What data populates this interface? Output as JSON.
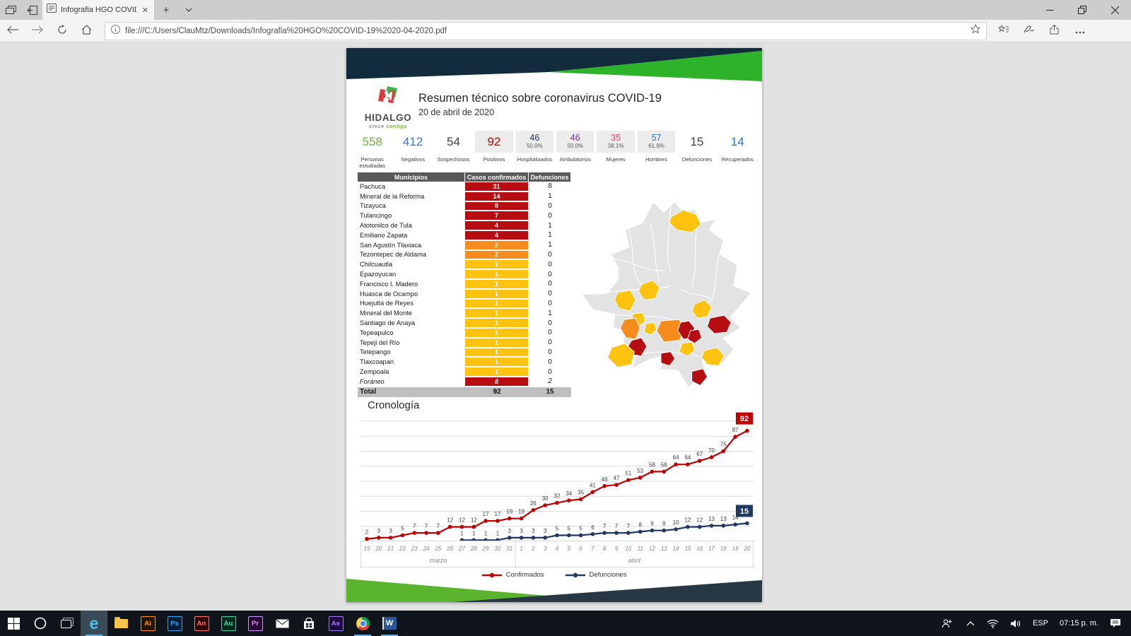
{
  "browser": {
    "tab_title": "Infografia HGO COVID-",
    "url": "file:///C:/Users/ClauMtz/Downloads/Infografia%20HGO%20COVID-19%2020-04-2020.pdf"
  },
  "infographic": {
    "header_title": "Resumen técnico sobre coronavirus COVID-19",
    "header_date": "20 de abril de 2020",
    "logo": {
      "name": "HIDALGO",
      "tagline_word1": "crece",
      "tagline_word2": "contigo"
    },
    "brand_colors": {
      "navy": "#122c3e",
      "green": "#2db229",
      "footer_green": "#5ab42d",
      "footer_navy": "#273744"
    },
    "stats": [
      {
        "value": "558",
        "label": "Personas estudiadas",
        "color": "#70ad47",
        "boxed": false
      },
      {
        "value": "412",
        "label": "Negativos",
        "color": "#4472c4",
        "boxed": false
      },
      {
        "value": "54",
        "label": "Sospechosos",
        "color": "#404040",
        "boxed": false
      },
      {
        "value": "92",
        "label": "Positivos",
        "color": "#c00000",
        "boxed": true,
        "big": true
      },
      {
        "value": "46",
        "sub": "50.0%",
        "label": "Hospitalizados",
        "color": "#1f3864",
        "boxed": true
      },
      {
        "value": "46",
        "sub": "50.0%",
        "label": "Ambulatorios",
        "color": "#7030a0",
        "boxed": true
      },
      {
        "value": "35",
        "sub": "38.1%",
        "label": "Mujeres",
        "color": "#d94a68",
        "boxed": true
      },
      {
        "value": "57",
        "sub": "61.9%",
        "label": "Hombres",
        "color": "#2e75b6",
        "boxed": true
      },
      {
        "value": "15",
        "label": "Defunciones",
        "color": "#404040",
        "boxed": false
      },
      {
        "value": "14",
        "label": "Recuperados",
        "color": "#2e75b6",
        "boxed": false
      }
    ],
    "table": {
      "headers": [
        "Municipios",
        "Casos confirmados",
        "Defunciones"
      ],
      "level_colors": {
        "darkred": "#b50d12",
        "orange": "#f68c1e",
        "yellow": "#ffc20e"
      },
      "rows": [
        {
          "name": "Pachuca",
          "cases": 31,
          "deaths": 8,
          "level": "darkred"
        },
        {
          "name": "Mineral de la Reforma",
          "cases": 14,
          "deaths": 1,
          "level": "darkred"
        },
        {
          "name": "Tizayuca",
          "cases": 8,
          "deaths": 0,
          "level": "darkred"
        },
        {
          "name": "Tulancingo",
          "cases": 7,
          "deaths": 0,
          "level": "darkred"
        },
        {
          "name": "Atotonilco de Tula",
          "cases": 4,
          "deaths": 1,
          "level": "darkred"
        },
        {
          "name": "Emiliano Zapata",
          "cases": 4,
          "deaths": 1,
          "level": "darkred"
        },
        {
          "name": "San Agustín Tlaxiaca",
          "cases": 2,
          "deaths": 1,
          "level": "orange"
        },
        {
          "name": "Tezontepec de Aldama",
          "cases": 2,
          "deaths": 0,
          "level": "orange"
        },
        {
          "name": "Chilcuautla",
          "cases": 1,
          "deaths": 0,
          "level": "yellow"
        },
        {
          "name": "Epazoyucan",
          "cases": 1,
          "deaths": 0,
          "level": "yellow"
        },
        {
          "name": "Francisco I. Madero",
          "cases": 1,
          "deaths": 0,
          "level": "yellow"
        },
        {
          "name": "Huasca de Ocampo",
          "cases": 1,
          "deaths": 0,
          "level": "yellow"
        },
        {
          "name": "Huejutla de Reyes",
          "cases": 1,
          "deaths": 0,
          "level": "yellow"
        },
        {
          "name": "Mineral del Monte",
          "cases": 1,
          "deaths": 1,
          "level": "yellow"
        },
        {
          "name": "Santiago de Anaya",
          "cases": 1,
          "deaths": 0,
          "level": "yellow"
        },
        {
          "name": "Tepeapulco",
          "cases": 1,
          "deaths": 0,
          "level": "yellow"
        },
        {
          "name": "Tepeji del Río",
          "cases": 1,
          "deaths": 0,
          "level": "yellow"
        },
        {
          "name": "Tetepango",
          "cases": 1,
          "deaths": 0,
          "level": "yellow"
        },
        {
          "name": "Tlaxcoapan",
          "cases": 1,
          "deaths": 0,
          "level": "yellow"
        },
        {
          "name": "Zempoala",
          "cases": 1,
          "deaths": 0,
          "level": "yellow"
        },
        {
          "name": "Foráneo",
          "cases": 8,
          "deaths": 2,
          "level": "darkred",
          "italic": true
        }
      ],
      "total": {
        "label": "Total",
        "cases": 92,
        "deaths": 15
      }
    },
    "chronology_title": "Cronología"
  },
  "chart_data": {
    "type": "line",
    "title": "Cronología",
    "x_labels": [
      "19",
      "20",
      "21",
      "22",
      "23",
      "24",
      "25",
      "26",
      "27",
      "28",
      "29",
      "30",
      "31",
      "1",
      "2",
      "3",
      "4",
      "5",
      "6",
      "7",
      "8",
      "9",
      "10",
      "11",
      "12",
      "13",
      "14",
      "15",
      "16",
      "17",
      "18",
      "19",
      "20"
    ],
    "month_groups": [
      {
        "label": "marzo",
        "count": 13
      },
      {
        "label": "abril",
        "count": 20
      }
    ],
    "series": [
      {
        "name": "Confirmados",
        "color": "#c00000",
        "start_index": 0,
        "values": [
          2,
          3,
          3,
          5,
          7,
          7,
          7,
          12,
          12,
          12,
          17,
          17,
          19,
          19,
          26,
          30,
          32,
          34,
          35,
          41,
          46,
          47,
          51,
          53,
          58,
          58,
          64,
          64,
          67,
          70,
          75,
          87,
          92
        ]
      },
      {
        "name": "Defunciones",
        "color": "#1f3864",
        "start_index": 8,
        "values": [
          1,
          1,
          1,
          1,
          3,
          3,
          3,
          3,
          5,
          5,
          5,
          6,
          7,
          7,
          7,
          8,
          9,
          9,
          10,
          12,
          12,
          13,
          13,
          14,
          15
        ]
      }
    ],
    "ylim": [
      0,
      100
    ],
    "grid": true,
    "legend_position": "bottom"
  },
  "taskbar": {
    "language": "ESP",
    "time": "07:15 p. m.",
    "apps": [
      {
        "kind": "start"
      },
      {
        "kind": "search"
      },
      {
        "kind": "taskview"
      },
      {
        "kind": "edge",
        "active": true
      },
      {
        "kind": "explorer"
      },
      {
        "kind": "adobe",
        "label": "Ai",
        "fg": "#ff9a00",
        "bg": "#261300"
      },
      {
        "kind": "adobe",
        "label": "Ps",
        "fg": "#31a8ff",
        "bg": "#001e36"
      },
      {
        "kind": "adobe",
        "label": "An",
        "fg": "#ff7661",
        "bg": "#330000"
      },
      {
        "kind": "adobe",
        "label": "Au",
        "fg": "#42d7a6",
        "bg": "#052a20"
      },
      {
        "kind": "adobe",
        "label": "Pr",
        "fg": "#cf96fd",
        "bg": "#2a0634"
      },
      {
        "kind": "mail"
      },
      {
        "kind": "store"
      },
      {
        "kind": "adobe",
        "label": "Ae",
        "fg": "#9d7cf5",
        "bg": "#1f0740"
      },
      {
        "kind": "chrome",
        "running": true
      },
      {
        "kind": "word",
        "label": "W",
        "running": true
      }
    ]
  }
}
